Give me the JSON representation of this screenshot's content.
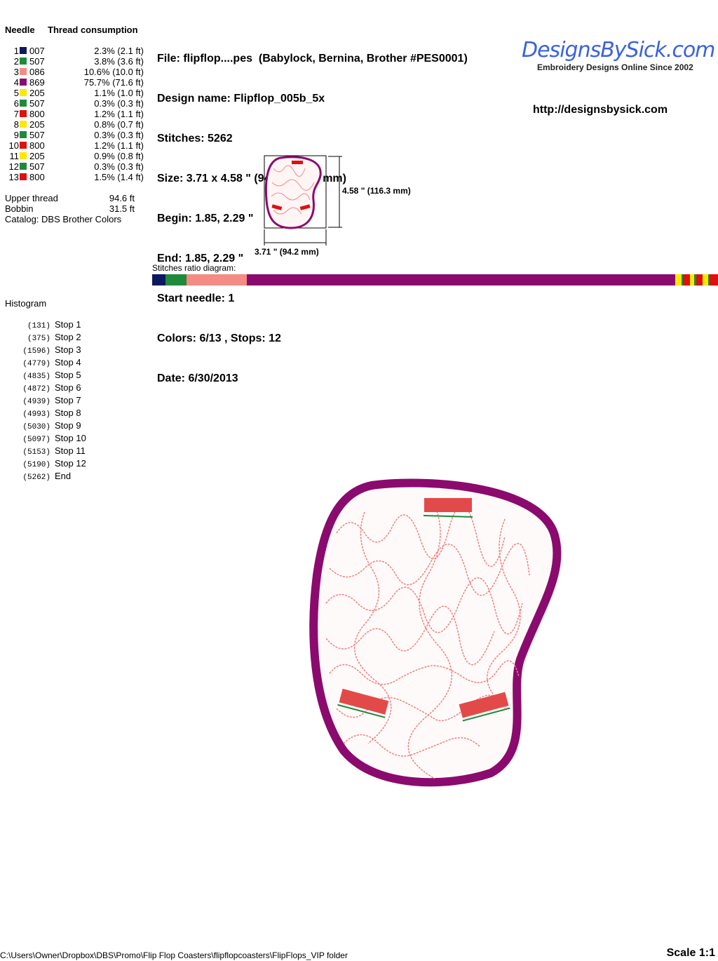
{
  "threads": {
    "header_needle": "Needle",
    "header_consumption": "Thread consumption",
    "rows": [
      {
        "n": "1",
        "color": "#0a1a60",
        "code": "007",
        "pct": 2.3,
        "text": "2.3% (2.1 ft)"
      },
      {
        "n": "2",
        "color": "#1e8a3a",
        "code": "507",
        "pct": 3.8,
        "text": "3.8% (3.6 ft)"
      },
      {
        "n": "3",
        "color": "#f48b84",
        "code": "086",
        "pct": 10.6,
        "text": "10.6% (10.0 ft)"
      },
      {
        "n": "4",
        "color": "#8b0a6e",
        "code": "869",
        "pct": 75.7,
        "text": "75.7% (71.6 ft)"
      },
      {
        "n": "5",
        "color": "#ffe800",
        "code": "205",
        "pct": 1.1,
        "text": "1.1% (1.0 ft)"
      },
      {
        "n": "6",
        "color": "#1e8a3a",
        "code": "507",
        "pct": 0.3,
        "text": "0.3% (0.3 ft)"
      },
      {
        "n": "7",
        "color": "#e01010",
        "code": "800",
        "pct": 1.2,
        "text": "1.2% (1.1 ft)"
      },
      {
        "n": "8",
        "color": "#ffe800",
        "code": "205",
        "pct": 0.8,
        "text": "0.8% (0.7 ft)"
      },
      {
        "n": "9",
        "color": "#1e8a3a",
        "code": "507",
        "pct": 0.3,
        "text": "0.3% (0.3 ft)"
      },
      {
        "n": "10",
        "color": "#e01010",
        "code": "800",
        "pct": 1.2,
        "text": "1.2% (1.1 ft)"
      },
      {
        "n": "11",
        "color": "#ffe800",
        "code": "205",
        "pct": 0.9,
        "text": "0.9% (0.8 ft)"
      },
      {
        "n": "12",
        "color": "#1e8a3a",
        "code": "507",
        "pct": 0.3,
        "text": "0.3% (0.3 ft)"
      },
      {
        "n": "13",
        "color": "#e01010",
        "code": "800",
        "pct": 1.5,
        "text": "1.5% (1.4 ft)"
      }
    ],
    "upper_label": "Upper thread",
    "upper_value": "94.6 ft",
    "bobbin_label": "Bobbin",
    "bobbin_value": "31.5 ft",
    "catalog": "Catalog: DBS Brother Colors"
  },
  "info": {
    "file": "File: flipflop....pes  (Babylock, Bernina, Brother #PES0001)",
    "design": "Design name: Flipflop_005b_5x",
    "stitches": "Stitches: 5262",
    "size": "Size: 3.71 x 4.58 \" (94.2 x 116.3 mm)",
    "begin": "Begin: 1.85, 2.29 \"",
    "end": "End: 1.85, 2.29 \"",
    "start_needle": "Start needle: 1",
    "colors": "Colors: 6/13 , Stops: 12",
    "date": "Date: 6/30/2013"
  },
  "logo": {
    "text": "DesignsBySick.com",
    "tagline": "Embroidery Designs Online Since 2002",
    "url": "http://designsbysick.com"
  },
  "thumb": {
    "height_label": "4.58 \" (116.3 mm)",
    "width_label": "3.71 \" (94.2 mm)"
  },
  "ratio_label": "Stitches ratio diagram:",
  "histogram": {
    "title": "Histogram",
    "rows": [
      {
        "count": "(131)",
        "label": "Stop 1"
      },
      {
        "count": "(375)",
        "label": "Stop 2"
      },
      {
        "count": "(1596)",
        "label": "Stop 3"
      },
      {
        "count": "(4779)",
        "label": "Stop 4"
      },
      {
        "count": "(4835)",
        "label": "Stop 5"
      },
      {
        "count": "(4872)",
        "label": "Stop 6"
      },
      {
        "count": "(4939)",
        "label": "Stop 7"
      },
      {
        "count": "(4993)",
        "label": "Stop 8"
      },
      {
        "count": "(5030)",
        "label": "Stop 9"
      },
      {
        "count": "(5097)",
        "label": "Stop 10"
      },
      {
        "count": "(5153)",
        "label": "Stop 11"
      },
      {
        "count": "(5190)",
        "label": "Stop 12"
      },
      {
        "count": "(5262)",
        "label": "End"
      }
    ]
  },
  "footer": {
    "path": "C:\\Users\\Owner\\Dropbox\\DBS\\Promo\\Flip Flop Coasters\\flipflopcoasters\\FlipFlops_VIP folder",
    "scale": "Scale 1:1"
  }
}
